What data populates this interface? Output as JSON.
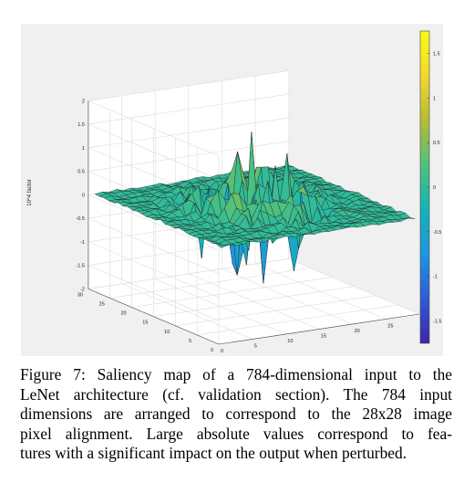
{
  "figure": {
    "zlabel": "10^4 factor",
    "colorbar_ticks": [
      "1.5",
      "1",
      "0.5",
      "0",
      "-0.5",
      "-1",
      "-1.5"
    ],
    "colorbar_values": [
      1.5,
      1,
      0.5,
      0,
      -0.5,
      -1,
      -1.5
    ],
    "colorbar_range": [
      -1.75,
      1.75
    ],
    "colormap_colors": [
      "#3e26a8",
      "#2f5bd7",
      "#1f96e0",
      "#14b4b5",
      "#4fc17c",
      "#b6bd35",
      "#f5d72d",
      "#f9fb15"
    ]
  },
  "chart_data": {
    "type": "surface",
    "title": "",
    "xlabel": "",
    "ylabel": "",
    "zlabel": "10^4 factor",
    "grid": true,
    "xlim": [
      0,
      30
    ],
    "ylim": [
      0,
      30
    ],
    "zlim": [
      -2,
      2
    ],
    "x_ticks": [
      "0",
      "5",
      "10",
      "15",
      "20",
      "25",
      "30"
    ],
    "y_ticks": [
      "0",
      "5",
      "10",
      "15",
      "20",
      "25",
      "30"
    ],
    "z_ticks": [
      "2",
      "1.5",
      "1",
      "0.5",
      "0",
      "-0.5",
      "-1",
      "-1.5",
      "-2"
    ],
    "grid_size": [
      28,
      28
    ],
    "surface_note": "28x28 saliency values; flat (~0) near borders, large positive/negative spikes in central region",
    "peak_value_approx": 1.5,
    "min_value_approx": -1.7
  },
  "caption": {
    "lines": [
      "Figure 7: Saliency map of a 784-dimensional input to the",
      "LeNet architecture (cf. validation section). The 784 input",
      "dimensions are arranged to correspond to the 28x28 image",
      "pixel alignment. Large absolute values correspond to fea-",
      "tures with a significant impact on the output when perturbed."
    ]
  }
}
